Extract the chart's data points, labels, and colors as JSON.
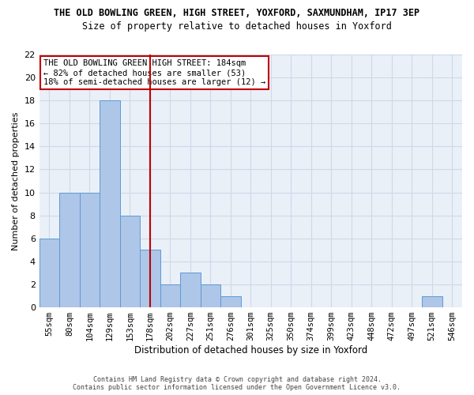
{
  "title_line1": "THE OLD BOWLING GREEN, HIGH STREET, YOXFORD, SAXMUNDHAM, IP17 3EP",
  "title_line2": "Size of property relative to detached houses in Yoxford",
  "xlabel": "Distribution of detached houses by size in Yoxford",
  "ylabel": "Number of detached properties",
  "categories": [
    "55sqm",
    "80sqm",
    "104sqm",
    "129sqm",
    "153sqm",
    "178sqm",
    "202sqm",
    "227sqm",
    "251sqm",
    "276sqm",
    "301sqm",
    "325sqm",
    "350sqm",
    "374sqm",
    "399sqm",
    "423sqm",
    "448sqm",
    "472sqm",
    "497sqm",
    "521sqm",
    "546sqm"
  ],
  "values": [
    6,
    10,
    10,
    18,
    8,
    5,
    2,
    3,
    2,
    1,
    0,
    0,
    0,
    0,
    0,
    0,
    0,
    0,
    0,
    1,
    0
  ],
  "bar_color": "#aec6e8",
  "bar_edge_color": "#5b9bd5",
  "vline_x": 5.0,
  "vline_color": "#c00000",
  "annotation_text": "THE OLD BOWLING GREEN HIGH STREET: 184sqm\n← 82% of detached houses are smaller (53)\n18% of semi-detached houses are larger (12) →",
  "annotation_box_color": "#c00000",
  "ylim": [
    0,
    22
  ],
  "yticks": [
    0,
    2,
    4,
    6,
    8,
    10,
    12,
    14,
    16,
    18,
    20,
    22
  ],
  "grid_color": "#d0d8e8",
  "footer_line1": "Contains HM Land Registry data © Crown copyright and database right 2024.",
  "footer_line2": "Contains public sector information licensed under the Open Government Licence v3.0.",
  "bg_color": "#eaf0f8",
  "fig_width": 6.0,
  "fig_height": 5.0,
  "dpi": 100
}
